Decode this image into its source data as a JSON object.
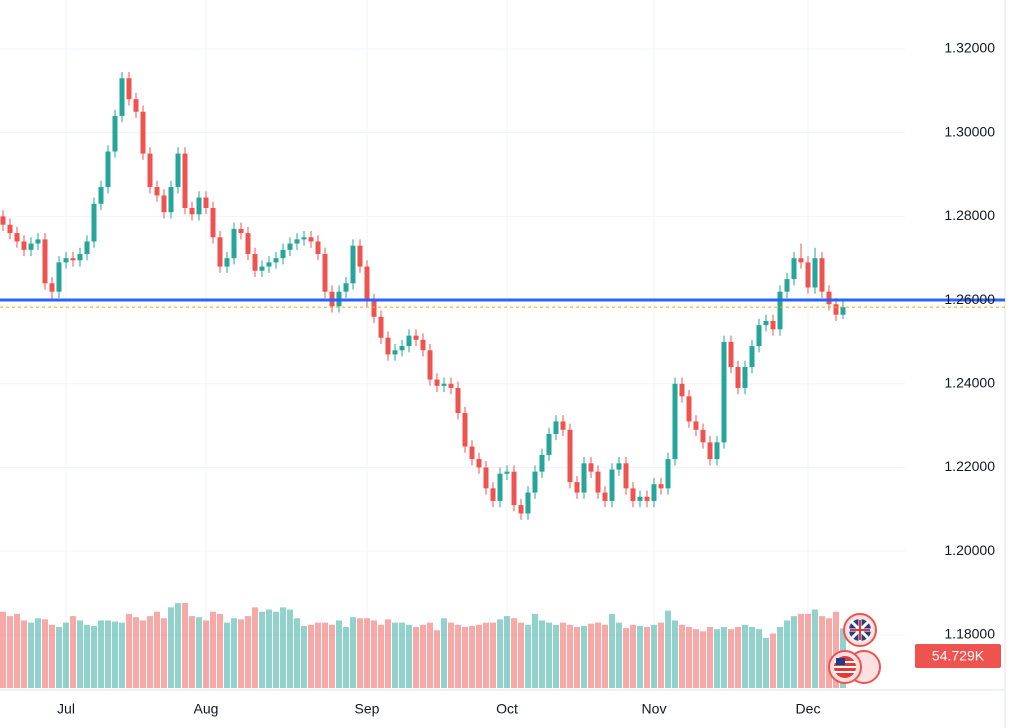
{
  "chart_data": {
    "type": "candlestick",
    "ylim": [
      1.1673,
      1.3317
    ],
    "yticks": [
      {
        "value": 1.18,
        "label": "1.18000"
      },
      {
        "value": 1.2,
        "label": "1.20000"
      },
      {
        "value": 1.22,
        "label": "1.22000"
      },
      {
        "value": 1.24,
        "label": "1.24000"
      },
      {
        "value": 1.26,
        "label": "1.26000"
      },
      {
        "value": 1.28,
        "label": "1.28000"
      },
      {
        "value": 1.3,
        "label": "1.30000"
      },
      {
        "value": 1.32,
        "label": "1.32000"
      }
    ],
    "xticks": [
      {
        "value": 9,
        "label": "Jul"
      },
      {
        "value": 29,
        "label": "Aug"
      },
      {
        "value": 52,
        "label": "Sep"
      },
      {
        "value": 72,
        "label": "Oct"
      },
      {
        "value": 93,
        "label": "Nov"
      },
      {
        "value": 115,
        "label": "Dec"
      }
    ],
    "grid": true,
    "up_color": "#26a69a",
    "down_color": "#ef5350",
    "hline": {
      "value": 1.26,
      "color": "#2962ff"
    },
    "last_price_color": "#f7a600",
    "open": [
      1.28,
      1.278,
      1.276,
      1.274,
      1.272,
      1.2735,
      1.2745,
      1.264,
      1.262,
      1.269,
      1.27,
      1.2695,
      1.271,
      1.274,
      1.283,
      1.287,
      1.2955,
      1.304,
      1.313,
      1.308,
      1.305,
      1.295,
      1.287,
      1.285,
      1.281,
      1.287,
      1.295,
      1.282,
      1.2805,
      1.2845,
      1.282,
      1.275,
      1.268,
      1.27,
      1.277,
      1.276,
      1.271,
      1.267,
      1.268,
      1.269,
      1.27,
      1.272,
      1.2735,
      1.2745,
      1.275,
      1.274,
      1.271,
      1.262,
      1.2585,
      1.262,
      1.264,
      1.273,
      1.268,
      1.26,
      1.256,
      1.251,
      1.247,
      1.248,
      1.249,
      1.2515,
      1.2505,
      1.248,
      1.241,
      1.2395,
      1.24,
      1.239,
      1.233,
      1.225,
      1.222,
      1.22,
      1.215,
      1.212,
      1.2185,
      1.219,
      1.211,
      1.209,
      1.214,
      1.219,
      1.223,
      1.228,
      1.231,
      1.229,
      1.2165,
      1.214,
      1.221,
      1.219,
      1.214,
      1.212,
      1.2195,
      1.221,
      1.215,
      1.212,
      1.213,
      1.212,
      1.216,
      1.215,
      1.222,
      1.24,
      1.237,
      1.231,
      1.229,
      1.226,
      1.222,
      1.226,
      1.25,
      1.244,
      1.239,
      1.244,
      1.249,
      1.254,
      1.255,
      1.253,
      1.262,
      1.265,
      1.27,
      1.269,
      1.263,
      1.27,
      1.262,
      1.259,
      1.2565
    ],
    "high": [
      1.2815,
      1.2795,
      1.2775,
      1.2755,
      1.275,
      1.276,
      1.276,
      1.2655,
      1.2705,
      1.2715,
      1.2715,
      1.2725,
      1.2755,
      1.2845,
      1.2885,
      1.297,
      1.3055,
      1.3145,
      1.3145,
      1.3095,
      1.3065,
      1.2965,
      1.2885,
      1.2865,
      1.2885,
      1.2965,
      1.2965,
      1.2835,
      1.286,
      1.286,
      1.2835,
      1.2765,
      1.2715,
      1.2785,
      1.2785,
      1.2775,
      1.2725,
      1.2695,
      1.2705,
      1.2715,
      1.2735,
      1.275,
      1.276,
      1.2765,
      1.2765,
      1.2755,
      1.2725,
      1.2635,
      1.2635,
      1.2655,
      1.2745,
      1.2745,
      1.2695,
      1.2615,
      1.2575,
      1.2525,
      1.2495,
      1.2505,
      1.253,
      1.253,
      1.252,
      1.2495,
      1.2425,
      1.2415,
      1.2415,
      1.2405,
      1.2345,
      1.2265,
      1.2235,
      1.2215,
      1.2165,
      1.22,
      1.2205,
      1.2205,
      1.2125,
      1.2155,
      1.2205,
      1.2245,
      1.2295,
      1.2325,
      1.2325,
      1.2305,
      1.218,
      1.2225,
      1.2225,
      1.2205,
      1.2155,
      1.221,
      1.2225,
      1.2225,
      1.2165,
      1.2145,
      1.2145,
      1.2175,
      1.2175,
      1.2235,
      1.2415,
      1.2415,
      1.2385,
      1.2325,
      1.2305,
      1.2275,
      1.2275,
      1.2515,
      1.2515,
      1.2455,
      1.2455,
      1.2505,
      1.2555,
      1.2565,
      1.2565,
      1.2635,
      1.2665,
      1.2715,
      1.2735,
      1.2705,
      1.2725,
      1.2715,
      1.2635,
      1.2605,
      1.26
    ],
    "low": [
      1.2765,
      1.2745,
      1.2725,
      1.2705,
      1.2705,
      1.272,
      1.2625,
      1.26,
      1.2605,
      1.2675,
      1.268,
      1.268,
      1.2695,
      1.2725,
      1.2815,
      1.2855,
      1.294,
      1.3025,
      1.3065,
      1.3035,
      1.2935,
      1.2855,
      1.2835,
      1.2795,
      1.2795,
      1.2855,
      1.2805,
      1.279,
      1.279,
      1.2805,
      1.2735,
      1.2665,
      1.2665,
      1.2685,
      1.2745,
      1.2695,
      1.2655,
      1.2655,
      1.2665,
      1.2675,
      1.2685,
      1.2705,
      1.272,
      1.273,
      1.2725,
      1.2695,
      1.2605,
      1.257,
      1.257,
      1.2605,
      1.2625,
      1.2665,
      1.2585,
      1.2545,
      1.2495,
      1.2455,
      1.2455,
      1.2465,
      1.2475,
      1.249,
      1.2465,
      1.2395,
      1.238,
      1.238,
      1.2375,
      1.2315,
      1.2235,
      1.2205,
      1.2185,
      1.2135,
      1.2105,
      1.2105,
      1.217,
      1.2095,
      1.2075,
      1.2075,
      1.2125,
      1.2175,
      1.2215,
      1.2265,
      1.2275,
      1.215,
      1.2125,
      1.2125,
      1.2175,
      1.2125,
      1.2105,
      1.2105,
      1.218,
      1.2135,
      1.2105,
      1.2105,
      1.2105,
      1.2105,
      1.2135,
      1.2135,
      1.2205,
      1.2355,
      1.2295,
      1.2275,
      1.2245,
      1.2205,
      1.2205,
      1.2245,
      1.2425,
      1.2375,
      1.2375,
      1.2425,
      1.2475,
      1.2525,
      1.2515,
      1.2515,
      1.2605,
      1.2635,
      1.2675,
      1.2615,
      1.2615,
      1.2605,
      1.2575,
      1.255,
      1.2555
    ],
    "close": [
      1.278,
      1.276,
      1.274,
      1.272,
      1.2735,
      1.2745,
      1.264,
      1.262,
      1.269,
      1.27,
      1.2695,
      1.271,
      1.274,
      1.283,
      1.287,
      1.2955,
      1.304,
      1.313,
      1.308,
      1.305,
      1.295,
      1.287,
      1.285,
      1.281,
      1.287,
      1.295,
      1.282,
      1.2805,
      1.2845,
      1.282,
      1.275,
      1.268,
      1.27,
      1.277,
      1.276,
      1.271,
      1.267,
      1.268,
      1.269,
      1.27,
      1.272,
      1.2735,
      1.2745,
      1.275,
      1.274,
      1.271,
      1.262,
      1.2585,
      1.262,
      1.264,
      1.273,
      1.268,
      1.26,
      1.256,
      1.251,
      1.247,
      1.248,
      1.249,
      1.2515,
      1.2505,
      1.248,
      1.241,
      1.2395,
      1.24,
      1.239,
      1.233,
      1.225,
      1.222,
      1.22,
      1.215,
      1.212,
      1.2185,
      1.219,
      1.211,
      1.209,
      1.214,
      1.219,
      1.223,
      1.228,
      1.231,
      1.229,
      1.2165,
      1.214,
      1.221,
      1.219,
      1.214,
      1.212,
      1.2195,
      1.221,
      1.215,
      1.212,
      1.213,
      1.212,
      1.216,
      1.215,
      1.222,
      1.24,
      1.237,
      1.231,
      1.229,
      1.226,
      1.222,
      1.226,
      1.25,
      1.244,
      1.239,
      1.244,
      1.249,
      1.254,
      1.255,
      1.253,
      1.262,
      1.265,
      1.27,
      1.269,
      1.263,
      1.27,
      1.262,
      1.259,
      1.2565,
      1.2583
    ],
    "volume": [
      70000,
      66000,
      68000,
      62000,
      60000,
      64000,
      63000,
      58000,
      56000,
      60000,
      66000,
      62000,
      58000,
      57000,
      62000,
      62000,
      61000,
      60000,
      68000,
      65000,
      62000,
      66000,
      70000,
      64000,
      74000,
      78000,
      78000,
      66000,
      65000,
      62000,
      70000,
      68000,
      60000,
      64000,
      63000,
      66000,
      74000,
      70000,
      72000,
      70000,
      74000,
      72000,
      64000,
      57000,
      58000,
      60000,
      60000,
      58000,
      62000,
      56000,
      65000,
      64000,
      64000,
      62000,
      58000,
      63000,
      60000,
      60000,
      58000,
      56000,
      58000,
      60000,
      53000,
      64000,
      60000,
      58000,
      56000,
      57000,
      58000,
      60000,
      60000,
      63000,
      66000,
      64000,
      60000,
      58000,
      68000,
      62000,
      60000,
      58000,
      60000,
      58000,
      56000,
      57000,
      59000,
      60000,
      58000,
      68000,
      60000,
      55000,
      58000,
      57000,
      56000,
      58000,
      60000,
      71000,
      62000,
      58000,
      56000,
      54000,
      52000,
      56000,
      54000,
      56000,
      54000,
      56000,
      58000,
      56000,
      54000,
      46000,
      50000,
      56000,
      62000,
      66000,
      68000,
      68000,
      72000,
      66000,
      64000,
      70000,
      54729
    ],
    "volume_label": "54.729K"
  }
}
